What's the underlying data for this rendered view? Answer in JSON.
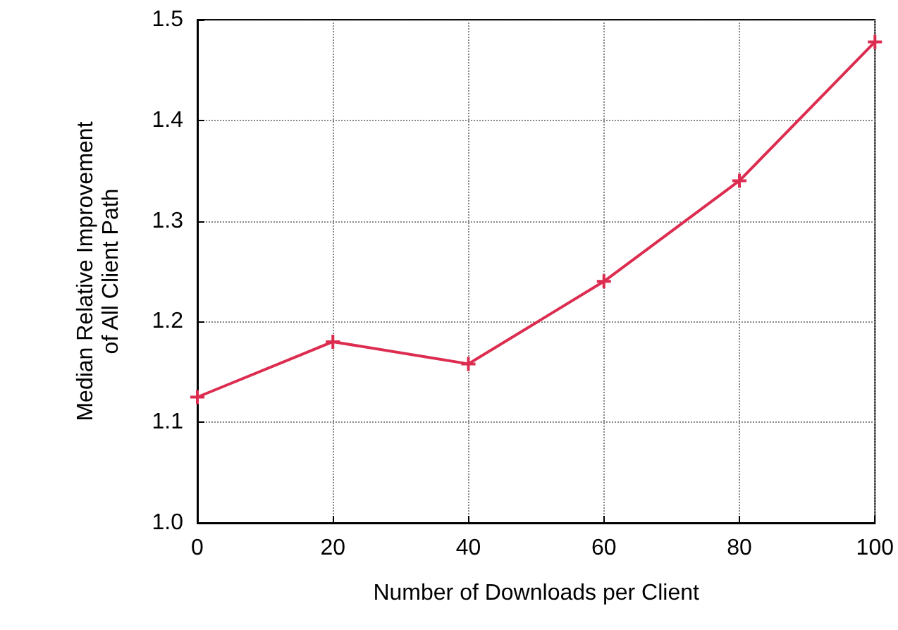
{
  "chart_data": {
    "type": "line",
    "xlabel": "Number of Downloads per Client",
    "ylabel": "Median Relative Improvement\nof All Client Path",
    "x": [
      0,
      20,
      40,
      60,
      80,
      100
    ],
    "series": [
      {
        "color": "#dc2d50",
        "values": [
          1.125,
          1.18,
          1.158,
          1.24,
          1.34,
          1.478
        ]
      }
    ],
    "xlim": [
      0,
      100
    ],
    "xticks": [
      0,
      20,
      40,
      60,
      80,
      100
    ],
    "ylim": [
      1.0,
      1.5
    ],
    "yticks": [
      {
        "value": 1.0,
        "label": "1.0"
      },
      {
        "value": 1.1,
        "label": "1.1"
      },
      {
        "value": 1.2,
        "label": "1.2"
      },
      {
        "value": 1.3,
        "label": "1.3"
      },
      {
        "value": 1.4,
        "label": "1.4"
      },
      {
        "value": 1.5,
        "label": "1.5"
      }
    ],
    "grid": true,
    "marker": "cross",
    "line_style": "solid"
  }
}
